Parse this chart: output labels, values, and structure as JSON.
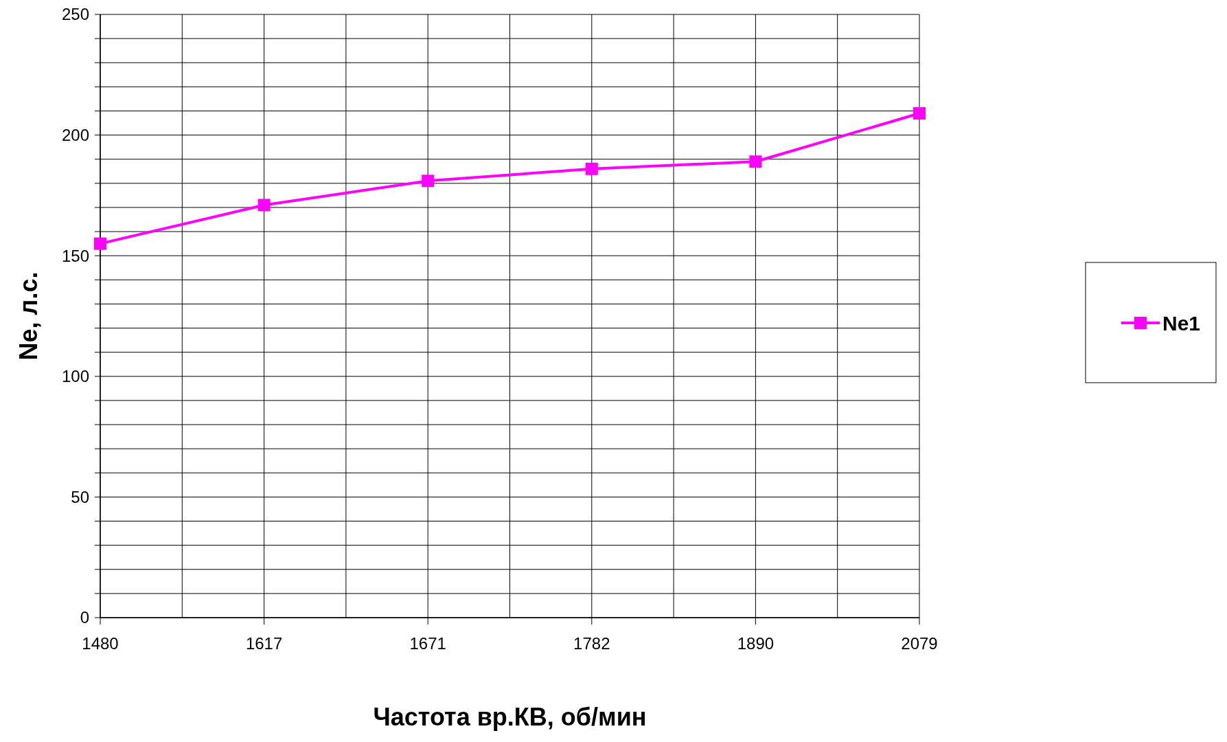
{
  "chart_data": {
    "type": "line",
    "xlabel": "Частота вр.КВ, об/мин",
    "ylabel": "Ne, л.с.",
    "categories": [
      "1480",
      "1617",
      "1671",
      "1782",
      "1890",
      "2079"
    ],
    "series": [
      {
        "name": "Ne1",
        "color": "#ff00ff",
        "values": [
          155,
          171,
          181,
          186,
          189,
          209
        ]
      }
    ],
    "ylim": [
      0,
      250
    ],
    "yticks": [
      0,
      {
        "value": 10,
        "label": null
      },
      {
        "value": 20,
        "label": null
      },
      {
        "value": 30,
        "label": null
      },
      {
        "value": 40,
        "label": null
      },
      50,
      {
        "value": 60,
        "label": null
      },
      {
        "value": 70,
        "label": null
      },
      {
        "value": 80,
        "label": null
      },
      {
        "value": 90,
        "label": null
      },
      100,
      {
        "value": 110,
        "label": null
      },
      {
        "value": 120,
        "label": null
      },
      {
        "value": 130,
        "label": null
      },
      {
        "value": 140,
        "label": null
      },
      150,
      {
        "value": 160,
        "label": null
      },
      {
        "value": 170,
        "label": null
      },
      {
        "value": 180,
        "label": null
      },
      {
        "value": 190,
        "label": null
      },
      200,
      {
        "value": 210,
        "label": null
      },
      {
        "value": 220,
        "label": null
      },
      {
        "value": 230,
        "label": null
      },
      {
        "value": 240,
        "label": null
      },
      250
    ],
    "grid": true,
    "legend": "right",
    "marker": "square",
    "line_style": "solid"
  }
}
